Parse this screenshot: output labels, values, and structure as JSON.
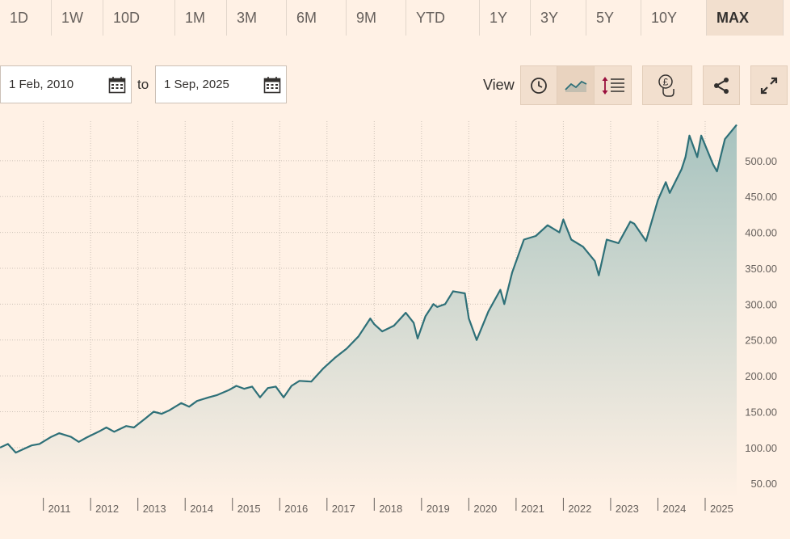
{
  "ranges": [
    "1D",
    "1W",
    "10D",
    "1M",
    "3M",
    "6M",
    "9M",
    "YTD",
    "1Y",
    "3Y",
    "5Y",
    "10Y",
    "MAX"
  ],
  "active_range": "MAX",
  "date_from": "1 Feb, 2010",
  "date_to": "1 Sep, 2025",
  "to_label": "to",
  "view_label": "View",
  "colors": {
    "line": "#2e7078",
    "fill_top": "#a7c3bf",
    "fill_bottom": "#fff1e5",
    "grid": "#ccc1b7",
    "axis_text": "#66605c"
  },
  "icons": [
    "calendar-icon",
    "clock-icon",
    "line-chart-icon",
    "events-icon",
    "currency-icon",
    "share-icon",
    "expand-icon"
  ],
  "chart_data": {
    "type": "area",
    "x_start": "2010-02",
    "x_end": "2025-09",
    "xtick_labels": [
      "2011",
      "2012",
      "2013",
      "2014",
      "2015",
      "2016",
      "2017",
      "2018",
      "2019",
      "2020",
      "2021",
      "2022",
      "2023",
      "2024",
      "2025"
    ],
    "ytick_labels": [
      "50.00",
      "100.00",
      "150.00",
      "200.00",
      "250.00",
      "300.00",
      "350.00",
      "400.00",
      "450.00",
      "500.00"
    ],
    "yticks": [
      50,
      100,
      150,
      200,
      250,
      300,
      350,
      400,
      450,
      500
    ],
    "ylim": [
      30,
      555
    ],
    "grid": true,
    "series": [
      {
        "x": [
          "2010-02",
          "2010-04",
          "2010-06",
          "2010-08",
          "2010-10",
          "2010-12",
          "2011-03",
          "2011-05",
          "2011-08",
          "2011-10",
          "2011-12",
          "2012-03",
          "2012-05",
          "2012-07",
          "2012-10",
          "2012-12",
          "2013-03",
          "2013-05",
          "2013-07",
          "2013-09",
          "2013-12",
          "2014-02",
          "2014-04",
          "2014-07",
          "2014-09",
          "2014-12",
          "2015-02",
          "2015-04",
          "2015-06",
          "2015-08",
          "2015-10",
          "2015-12",
          "2016-02",
          "2016-04",
          "2016-06",
          "2016-09",
          "2016-12",
          "2017-03",
          "2017-06",
          "2017-09",
          "2017-12",
          "2018-01",
          "2018-03",
          "2018-06",
          "2018-09",
          "2018-11",
          "2018-12",
          "2019-02",
          "2019-04",
          "2019-05",
          "2019-07",
          "2019-09",
          "2019-12",
          "2020-01",
          "2020-03",
          "2020-06",
          "2020-09",
          "2020-10",
          "2020-12",
          "2021-03",
          "2021-06",
          "2021-09",
          "2021-12",
          "2022-01",
          "2022-03",
          "2022-06",
          "2022-09",
          "2022-10",
          "2022-12",
          "2023-03",
          "2023-06",
          "2023-07",
          "2023-10",
          "2024-01",
          "2024-03",
          "2024-04",
          "2024-07",
          "2024-08",
          "2024-09",
          "2024-11",
          "2024-12",
          "2025-03",
          "2025-04",
          "2025-06",
          "2025-09"
        ],
        "values": [
          100,
          105,
          93,
          98,
          103,
          105,
          115,
          120,
          115,
          108,
          114,
          122,
          128,
          122,
          130,
          128,
          141,
          150,
          147,
          152,
          162,
          157,
          165,
          170,
          173,
          180,
          186,
          182,
          185,
          170,
          183,
          185,
          170,
          186,
          193,
          192,
          210,
          225,
          238,
          255,
          280,
          272,
          262,
          270,
          288,
          274,
          252,
          283,
          300,
          296,
          300,
          318,
          315,
          280,
          250,
          290,
          320,
          300,
          344,
          390,
          395,
          410,
          400,
          418,
          390,
          380,
          360,
          340,
          390,
          385,
          415,
          412,
          388,
          445,
          470,
          455,
          488,
          505,
          535,
          505,
          535,
          495,
          485,
          530,
          550
        ]
      }
    ]
  }
}
